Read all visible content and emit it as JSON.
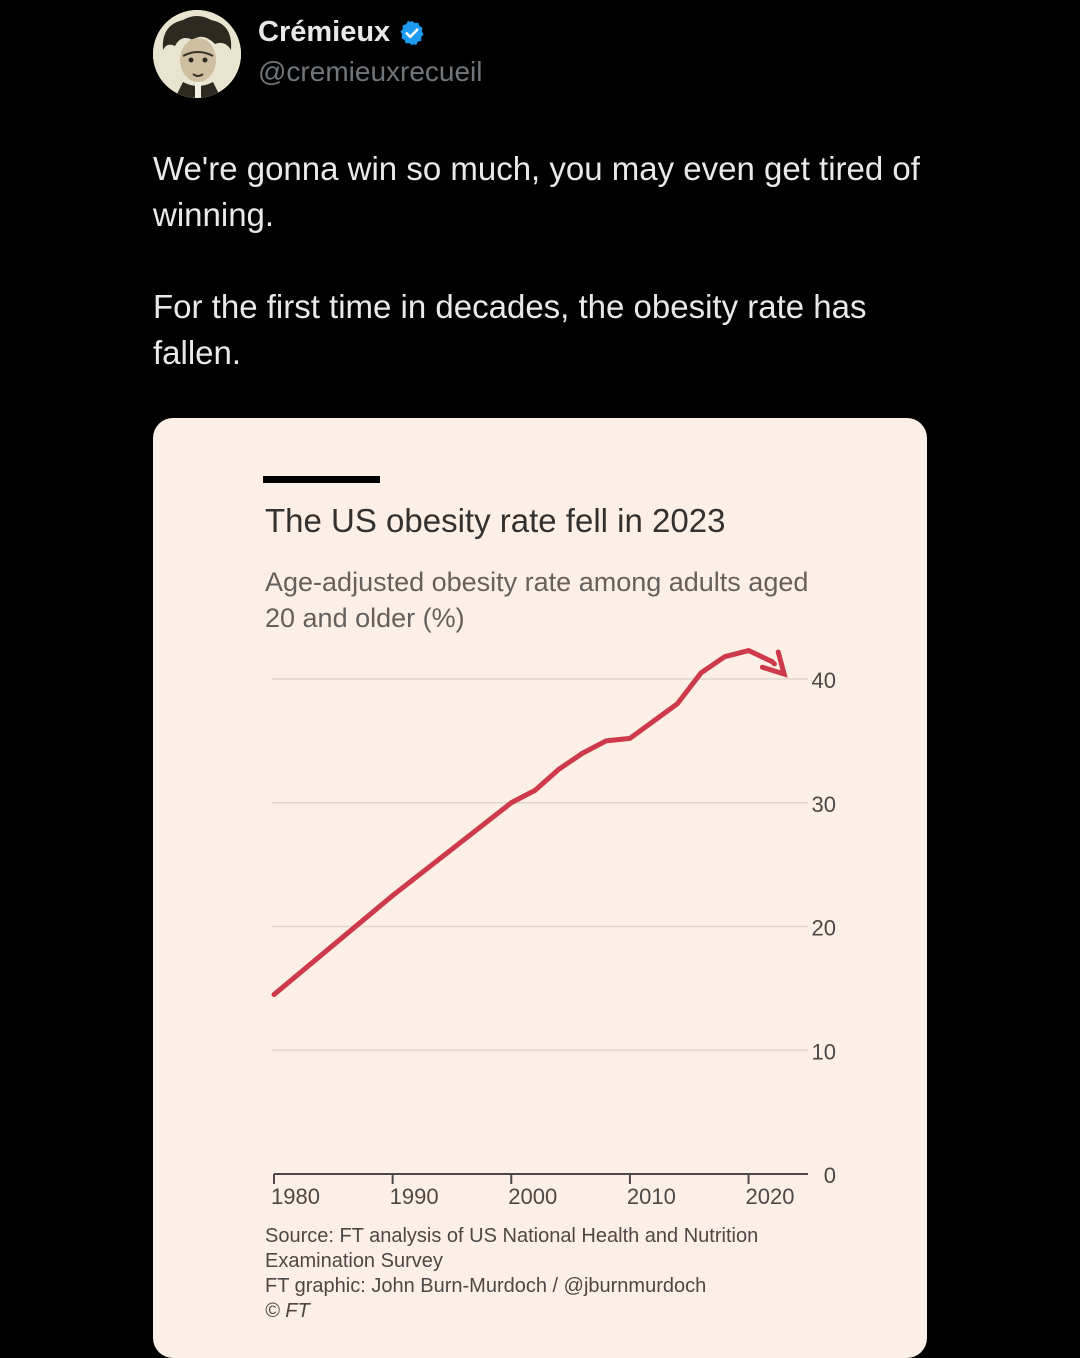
{
  "author": {
    "name": "Crémieux",
    "handle": "@cremieuxrecueil",
    "verified_color": "#1d9bf0"
  },
  "tweet": {
    "line1": "We're gonna win so much, you may even get tired of winning.",
    "line2": "For the first time in decades, the obesity rate has fallen."
  },
  "chart_data": {
    "type": "line",
    "title": "The US obesity rate fell in 2023",
    "subtitle": "Age-adjusted obesity rate among adults aged 20 and older (%)",
    "xlabel": "",
    "ylabel": "",
    "xlim": [
      1980,
      2024
    ],
    "ylim": [
      0,
      40
    ],
    "x_ticks": [
      1980,
      1990,
      2000,
      2010,
      2020
    ],
    "y_ticks": [
      0,
      10,
      20,
      30,
      40
    ],
    "series": [
      {
        "name": "Obesity rate",
        "color": "#cc3a4b",
        "x": [
          1980,
          1990,
          2000,
          2002,
          2004,
          2006,
          2008,
          2010,
          2012,
          2014,
          2016,
          2018,
          2020,
          2022,
          2023
        ],
        "values": [
          14.5,
          22.5,
          30.0,
          31.0,
          32.7,
          34.0,
          35.0,
          35.2,
          36.6,
          38.0,
          40.5,
          41.8,
          42.3,
          41.4,
          40.4
        ]
      }
    ],
    "end_marker": "arrow"
  },
  "source": {
    "line1": "Source: FT analysis of US National Health and Nutrition",
    "line2": "Examination Survey",
    "line3": "FT graphic: John Burn-Murdoch / @jburnmurdoch",
    "line4": "© FT"
  }
}
